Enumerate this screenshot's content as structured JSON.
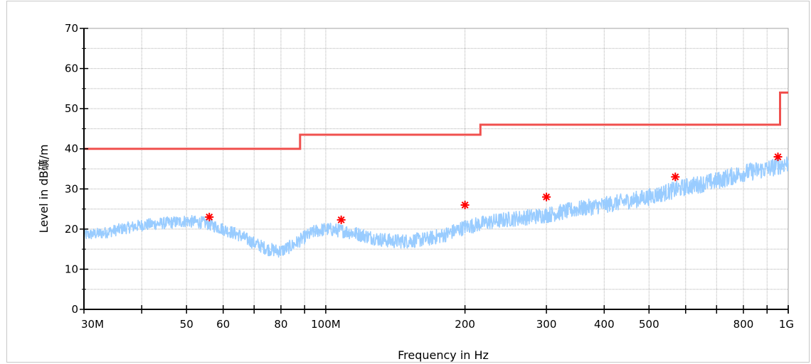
{
  "chart_data": {
    "type": "line",
    "title": "",
    "xlabel": "Frequency in Hz",
    "ylabel": "Level in dB礦/m",
    "x_scale": "log",
    "xlim": [
      30000000,
      1000000000
    ],
    "ylim": [
      0,
      70
    ],
    "grid": true,
    "x_tick_labels": [
      {
        "value": 30000000,
        "label": "30M"
      },
      {
        "value": 50000000,
        "label": "50"
      },
      {
        "value": 60000000,
        "label": "60"
      },
      {
        "value": 80000000,
        "label": "80"
      },
      {
        "value": 100000000,
        "label": "100M"
      },
      {
        "value": 200000000,
        "label": "200"
      },
      {
        "value": 300000000,
        "label": "300"
      },
      {
        "value": 400000000,
        "label": "400"
      },
      {
        "value": 500000000,
        "label": "500"
      },
      {
        "value": 800000000,
        "label": "800"
      },
      {
        "value": 1000000000,
        "label": "1G"
      }
    ],
    "y_ticks": [
      0,
      10,
      20,
      30,
      40,
      50,
      60,
      70
    ],
    "colors": {
      "limit": "#f0504e",
      "measurement": "#99ccff",
      "peaks": "#ff0000",
      "grid": "#b0b0b0"
    },
    "limit_line": {
      "x": [
        30000000,
        88000000,
        88000000,
        216000000,
        216000000,
        960000000,
        960000000,
        1000000000
      ],
      "y": [
        40,
        40,
        43.5,
        43.5,
        46,
        46,
        54,
        54
      ]
    },
    "measurement_trace": {
      "x": [
        30000000,
        33000000,
        36000000,
        40000000,
        45000000,
        50000000,
        55000000,
        60000000,
        65000000,
        70000000,
        75000000,
        80000000,
        85000000,
        90000000,
        95000000,
        100000000,
        110000000,
        120000000,
        130000000,
        140000000,
        150000000,
        165000000,
        180000000,
        200000000,
        220000000,
        250000000,
        300000000,
        350000000,
        400000000,
        450000000,
        500000000,
        600000000,
        700000000,
        800000000,
        900000000,
        1000000000
      ],
      "y": [
        18.5,
        19,
        20,
        21,
        21.5,
        22,
        21.5,
        20,
        18.5,
        16.5,
        15,
        14.5,
        16,
        18,
        19.5,
        20,
        19.5,
        18.5,
        17.5,
        17,
        17,
        17.5,
        18.5,
        20.5,
        21.5,
        22.5,
        23.5,
        25,
        26,
        27,
        28,
        30.5,
        32,
        34,
        35,
        36.5
      ]
    },
    "peaks": {
      "x": [
        56000000,
        108000000,
        200000000,
        300000000,
        570000000,
        950000000
      ],
      "y": [
        23,
        22.3,
        26,
        28,
        33,
        38
      ]
    }
  }
}
